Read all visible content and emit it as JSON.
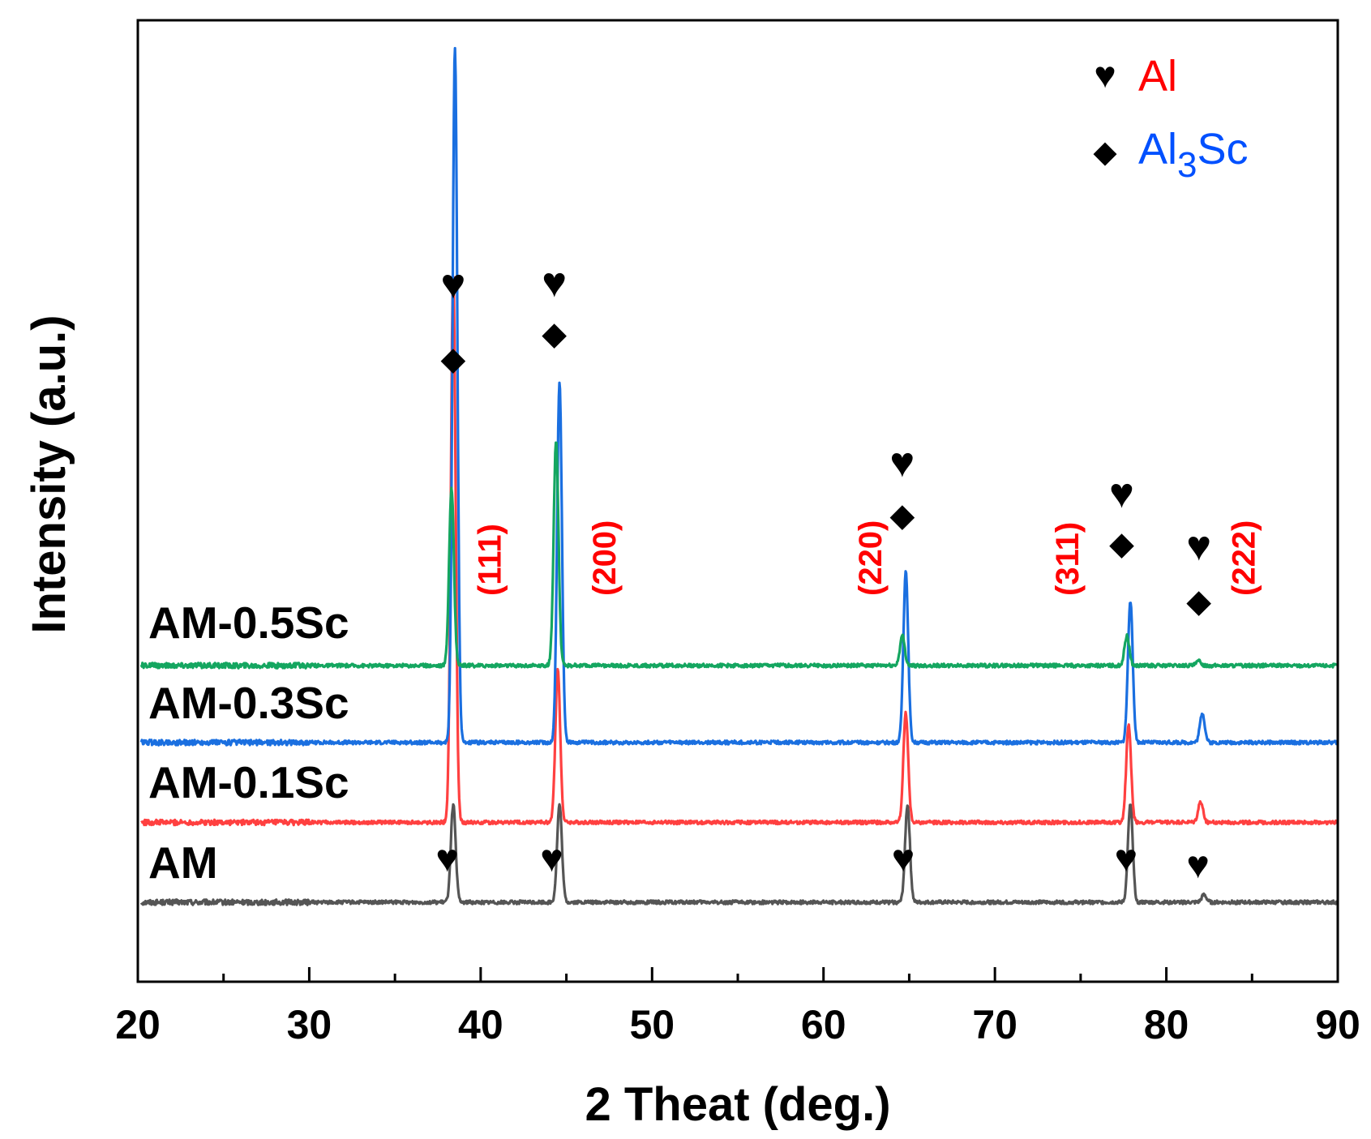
{
  "chart_data": {
    "type": "line",
    "title": "",
    "xlabel": "2 Theat (deg.)",
    "ylabel": "Intensity (a.u.)",
    "xlim": [
      20,
      90
    ],
    "x_ticks": [
      "20",
      "30",
      "40",
      "50",
      "60",
      "70",
      "80",
      "90"
    ],
    "y_ticks": [],
    "legend": {
      "position": "top-right",
      "entries": [
        {
          "symbol": "♥",
          "symbol_name": "heart",
          "label": "Al",
          "color": "#ff0000"
        },
        {
          "symbol": "◆",
          "symbol_name": "diamond",
          "label_main": "Al",
          "label_sub": "3",
          "label_tail": "Sc",
          "label": "Al3Sc",
          "color": "#0050ff"
        }
      ]
    },
    "series": [
      {
        "name": "AM",
        "color": "#555555",
        "baseline": 0,
        "peaks": [
          {
            "x": 38.4,
            "height": 3.3
          },
          {
            "x": 44.6,
            "height": 3.3
          },
          {
            "x": 64.9,
            "height": 3.3
          },
          {
            "x": 77.9,
            "height": 3.3
          },
          {
            "x": 82.2,
            "height": 0.25
          }
        ]
      },
      {
        "name": "AM-0.1Sc",
        "color": "#ff4040",
        "baseline": 2.7,
        "peaks": [
          {
            "x": 38.4,
            "height": 18.5
          },
          {
            "x": 44.5,
            "height": 5.2
          },
          {
            "x": 64.8,
            "height": 3.7
          },
          {
            "x": 77.8,
            "height": 3.3
          },
          {
            "x": 82.0,
            "height": 0.7
          }
        ]
      },
      {
        "name": "AM-0.3Sc",
        "color": "#1a6fe0",
        "baseline": 5.4,
        "peaks": [
          {
            "x": 38.5,
            "height": 23.5
          },
          {
            "x": 44.6,
            "height": 12.2
          },
          {
            "x": 64.8,
            "height": 5.8
          },
          {
            "x": 77.9,
            "height": 4.8
          },
          {
            "x": 82.1,
            "height": 1.0
          }
        ]
      },
      {
        "name": "AM-0.5Sc",
        "color": "#14a660",
        "baseline": 8.0,
        "peaks": [
          {
            "x": 38.3,
            "height": 6.0
          },
          {
            "x": 44.4,
            "height": 7.6
          },
          {
            "x": 64.6,
            "height": 1.0
          },
          {
            "x": 77.7,
            "height": 1.0
          },
          {
            "x": 81.9,
            "height": 0.15
          }
        ]
      }
    ],
    "annotations": {
      "planes": [
        {
          "label": "(111)",
          "x": 40.5
        },
        {
          "label": "(200)",
          "x": 47.2
        },
        {
          "label": "(220)",
          "x": 62.7
        },
        {
          "label": "(311)",
          "x": 74.2
        },
        {
          "label": "(222)",
          "x": 84.5
        }
      ],
      "upper_markers": [
        {
          "x": 38.3,
          "symbols": [
            "♥",
            "◆"
          ]
        },
        {
          "x": 44.2,
          "symbols": [
            "♥",
            "◆"
          ]
        },
        {
          "x": 64.5,
          "symbols": [
            "♥",
            "◆"
          ]
        },
        {
          "x": 77.3,
          "symbols": [
            "♥",
            "◆"
          ]
        },
        {
          "x": 81.8,
          "symbols": [
            "♥",
            "◆"
          ]
        }
      ],
      "am_markers": [
        {
          "x": 38.0,
          "symbol": "♥"
        },
        {
          "x": 44.1,
          "symbol": "♥"
        },
        {
          "x": 64.6,
          "symbol": "♥"
        },
        {
          "x": 77.6,
          "symbol": "♥"
        },
        {
          "x": 81.8,
          "symbol": "♥"
        }
      ]
    }
  }
}
